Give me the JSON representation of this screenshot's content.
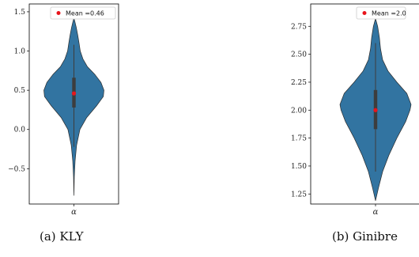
{
  "captions": [
    "(a) KLY",
    "(b) Ginibre"
  ],
  "colors": {
    "violin": "#3274a1",
    "violin_edge": "#2b2b2b",
    "box": "#3d3d3d",
    "mean": "#e8141b"
  },
  "chart_data": [
    {
      "type": "violin",
      "category": "α",
      "ylim": [
        -0.95,
        1.6
      ],
      "yticks": [
        -0.5,
        0.0,
        0.5,
        1.0,
        1.5
      ],
      "ytick_labels": [
        "−0.5",
        "0.0",
        "0.5",
        "1.0",
        "1.5"
      ],
      "whisker": [
        -0.22,
        1.08
      ],
      "quartiles": [
        0.28,
        0.66
      ],
      "median": 0.46,
      "mean": 0.46,
      "legend": "Mean =0.46",
      "legend_position": "top-right",
      "density": [
        [
          -0.84,
          0.0
        ],
        [
          -0.6,
          0.012
        ],
        [
          -0.4,
          0.04
        ],
        [
          -0.2,
          0.09
        ],
        [
          0.0,
          0.2
        ],
        [
          0.15,
          0.42
        ],
        [
          0.3,
          0.75
        ],
        [
          0.42,
          0.98
        ],
        [
          0.5,
          1.0
        ],
        [
          0.6,
          0.9
        ],
        [
          0.7,
          0.7
        ],
        [
          0.8,
          0.45
        ],
        [
          0.9,
          0.3
        ],
        [
          1.0,
          0.21
        ],
        [
          1.1,
          0.17
        ],
        [
          1.2,
          0.13
        ],
        [
          1.3,
          0.08
        ],
        [
          1.38,
          0.03
        ],
        [
          1.42,
          0.0
        ]
      ]
    },
    {
      "type": "violin",
      "category": "α",
      "ylim": [
        1.16,
        2.95
      ],
      "yticks": [
        1.25,
        1.5,
        1.75,
        2.0,
        2.25,
        2.5,
        2.75
      ],
      "ytick_labels": [
        "1.25",
        "1.50",
        "1.75",
        "2.00",
        "2.25",
        "2.50",
        "2.75"
      ],
      "whisker": [
        1.45,
        2.6
      ],
      "quartiles": [
        1.83,
        2.18
      ],
      "median": 2.0,
      "mean": 2.0,
      "legend": "Mean =2.0",
      "legend_position": "top-right",
      "density": [
        [
          1.19,
          0.0
        ],
        [
          1.3,
          0.08
        ],
        [
          1.45,
          0.2
        ],
        [
          1.6,
          0.38
        ],
        [
          1.75,
          0.6
        ],
        [
          1.9,
          0.85
        ],
        [
          2.0,
          0.97
        ],
        [
          2.05,
          1.0
        ],
        [
          2.15,
          0.88
        ],
        [
          2.25,
          0.6
        ],
        [
          2.35,
          0.35
        ],
        [
          2.45,
          0.2
        ],
        [
          2.55,
          0.14
        ],
        [
          2.65,
          0.11
        ],
        [
          2.75,
          0.06
        ],
        [
          2.82,
          0.0
        ]
      ]
    }
  ]
}
